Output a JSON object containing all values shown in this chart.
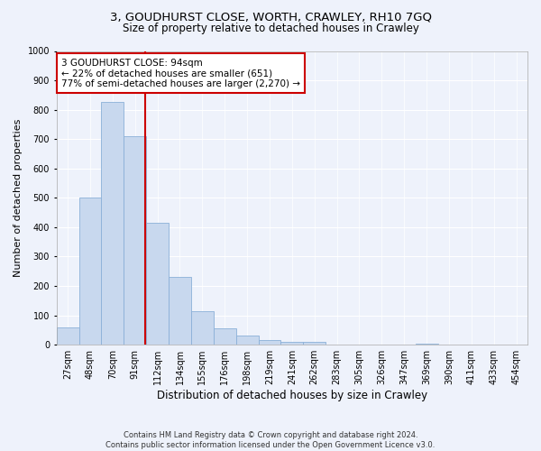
{
  "title1": "3, GOUDHURST CLOSE, WORTH, CRAWLEY, RH10 7GQ",
  "title2": "Size of property relative to detached houses in Crawley",
  "xlabel": "Distribution of detached houses by size in Crawley",
  "ylabel": "Number of detached properties",
  "bar_labels": [
    "27sqm",
    "48sqm",
    "70sqm",
    "91sqm",
    "112sqm",
    "134sqm",
    "155sqm",
    "176sqm",
    "198sqm",
    "219sqm",
    "241sqm",
    "262sqm",
    "283sqm",
    "305sqm",
    "326sqm",
    "347sqm",
    "369sqm",
    "390sqm",
    "411sqm",
    "433sqm",
    "454sqm"
  ],
  "bar_values": [
    60,
    500,
    825,
    710,
    415,
    230,
    115,
    55,
    30,
    15,
    10,
    10,
    0,
    0,
    0,
    0,
    5,
    0,
    0,
    0,
    0
  ],
  "bar_color": "#c8d8ee",
  "bar_edge_color": "#8ab0d8",
  "vline_color": "#cc0000",
  "annotation_text": "3 GOUDHURST CLOSE: 94sqm\n← 22% of detached houses are smaller (651)\n77% of semi-detached houses are larger (2,270) →",
  "annotation_box_color": "#ffffff",
  "annotation_box_edge": "#cc0000",
  "ylim": [
    0,
    1000
  ],
  "yticks": [
    0,
    100,
    200,
    300,
    400,
    500,
    600,
    700,
    800,
    900,
    1000
  ],
  "footer1": "Contains HM Land Registry data © Crown copyright and database right 2024.",
  "footer2": "Contains public sector information licensed under the Open Government Licence v3.0.",
  "bg_color": "#eef2fb",
  "plot_bg_color": "#eef2fb",
  "title1_fontsize": 9.5,
  "title2_fontsize": 8.5,
  "xlabel_fontsize": 8.5,
  "ylabel_fontsize": 8,
  "tick_fontsize": 7,
  "annotation_fontsize": 7.5,
  "footer_fontsize": 6
}
